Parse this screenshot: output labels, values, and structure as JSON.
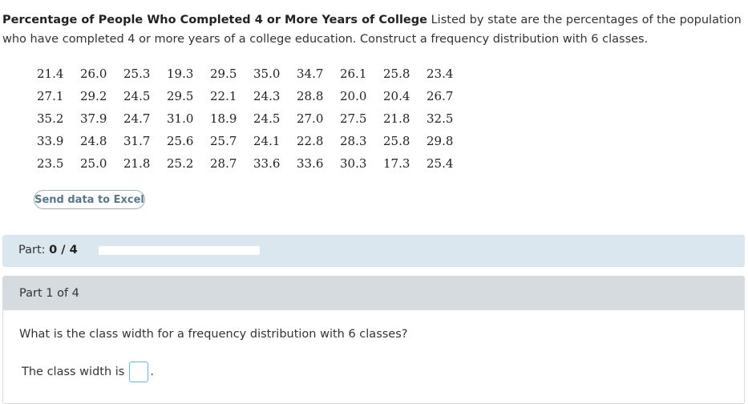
{
  "problem": {
    "title": "Percentage of People Who Completed 4 or More Years of College",
    "description": "Listed by state are the percentages of the population who have completed 4 or more years of a college education. Construct a frequency distribution with 6 classes."
  },
  "data_rows": [
    [
      "21.4",
      "26.0",
      "25.3",
      "19.3",
      "29.5",
      "35.0",
      "34.7",
      "26.1",
      "25.8",
      "23.4"
    ],
    [
      "27.1",
      "29.2",
      "24.5",
      "29.5",
      "22.1",
      "24.3",
      "28.8",
      "20.0",
      "20.4",
      "26.7"
    ],
    [
      "35.2",
      "37.9",
      "24.7",
      "31.0",
      "18.9",
      "24.5",
      "27.0",
      "27.5",
      "21.8",
      "32.5"
    ],
    [
      "33.9",
      "24.8",
      "31.7",
      "25.6",
      "25.7",
      "24.1",
      "22.8",
      "28.3",
      "25.8",
      "29.8"
    ],
    [
      "23.5",
      "25.0",
      "21.8",
      "25.2",
      "28.7",
      "33.6",
      "33.6",
      "30.3",
      "17.3",
      "25.4"
    ]
  ],
  "excel_button": "Send data to Excel",
  "part_progress": {
    "label": "Part:",
    "value": "0 / 4",
    "fraction": 0
  },
  "part_card": {
    "header": "Part 1 of 4",
    "question": "What is the class width for a frequency distribution with 6 classes?",
    "answer_label": "The class width is",
    "answer_value": "",
    "answer_suffix": "."
  },
  "colors": {
    "part_bar_bg": "#dbe7ef",
    "part_header_bg": "#d5dbde",
    "input_border": "#6bb3d6",
    "button_text": "#5a7787"
  }
}
